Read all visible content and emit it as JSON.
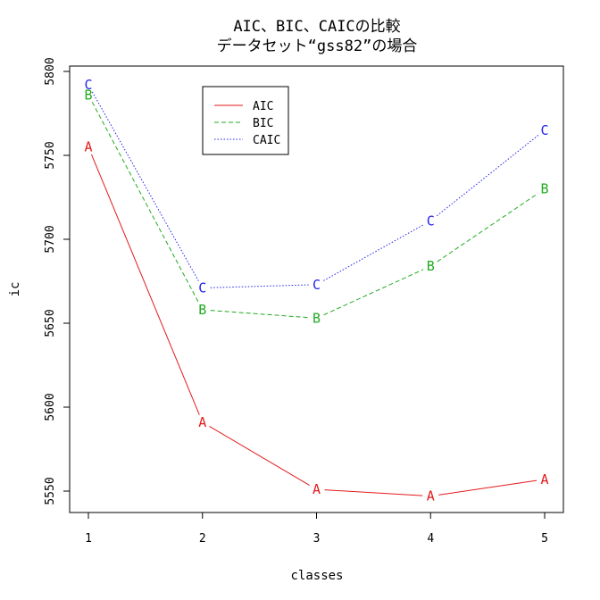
{
  "chart_data": {
    "type": "line",
    "title": "AIC、BIC、CAICの比較",
    "subtitle": "データセット“gss82”の場合",
    "xlabel": "classes",
    "ylabel": "ic",
    "x": [
      1,
      2,
      3,
      4,
      5
    ],
    "xticks": [
      "1",
      "2",
      "3",
      "4",
      "5"
    ],
    "yticks": [
      "5550",
      "5600",
      "5650",
      "5700",
      "5750",
      "5800"
    ],
    "xlim": [
      1,
      5
    ],
    "ylim": [
      5545,
      5795
    ],
    "grid": false,
    "legend_position": "top-left",
    "series": [
      {
        "name": "AIC",
        "marker": "A",
        "color": "#e31a1c",
        "dash": "solid",
        "values": [
          5755,
          5591,
          5551,
          5547,
          5557
        ]
      },
      {
        "name": "BIC",
        "marker": "B",
        "color": "#22aa22",
        "dash": "dashed",
        "values": [
          5786,
          5658,
          5653,
          5684,
          5730
        ]
      },
      {
        "name": "CAIC",
        "marker": "C",
        "color": "#2222ee",
        "dash": "dotted",
        "values": [
          5792,
          5671,
          5673,
          5711,
          5765
        ]
      }
    ]
  }
}
